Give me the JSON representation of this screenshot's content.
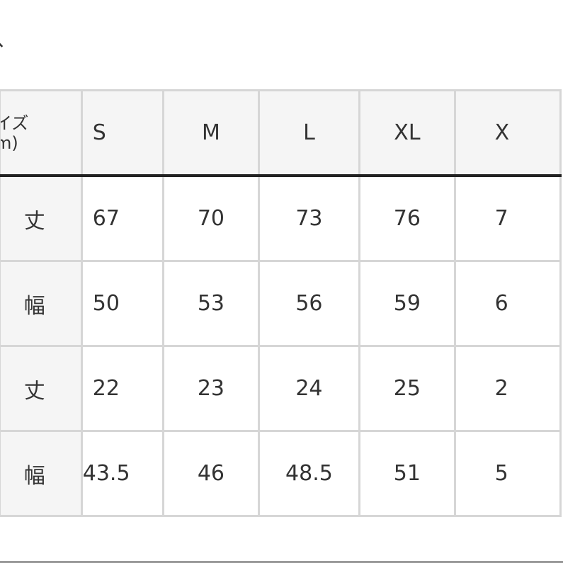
{
  "title_fragment": "、",
  "table": {
    "corner_label_line1": "イズ",
    "corner_label_line2": "m)",
    "sizes": [
      "S",
      "M",
      "L",
      "XL",
      "X"
    ],
    "rows": [
      {
        "label": "丈",
        "values": [
          "67",
          "70",
          "73",
          "76",
          "7"
        ]
      },
      {
        "label": "幅",
        "values": [
          "50",
          "53",
          "56",
          "59",
          "6"
        ]
      },
      {
        "label": "丈",
        "values": [
          "22",
          "23",
          "24",
          "25",
          "2"
        ]
      },
      {
        "label": "幅",
        "values": [
          "43.5",
          "46",
          "48.5",
          "51",
          "5"
        ]
      }
    ]
  }
}
